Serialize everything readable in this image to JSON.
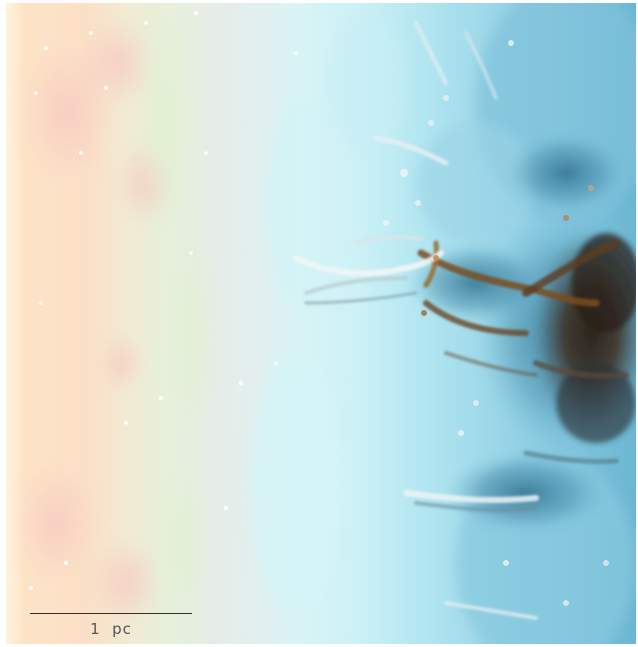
{
  "scale_bar": {
    "label": "1  pc"
  },
  "colors": {
    "left_warm_edge": "#fde5c8",
    "mid_pale_cyan": "#d9f5f6",
    "right_cyan": "#7cc4dc",
    "dense_gas_dark": "#3a2a1c",
    "dense_gas_brown": "#8a5a2a",
    "bright_rim": "#eef4f6"
  }
}
